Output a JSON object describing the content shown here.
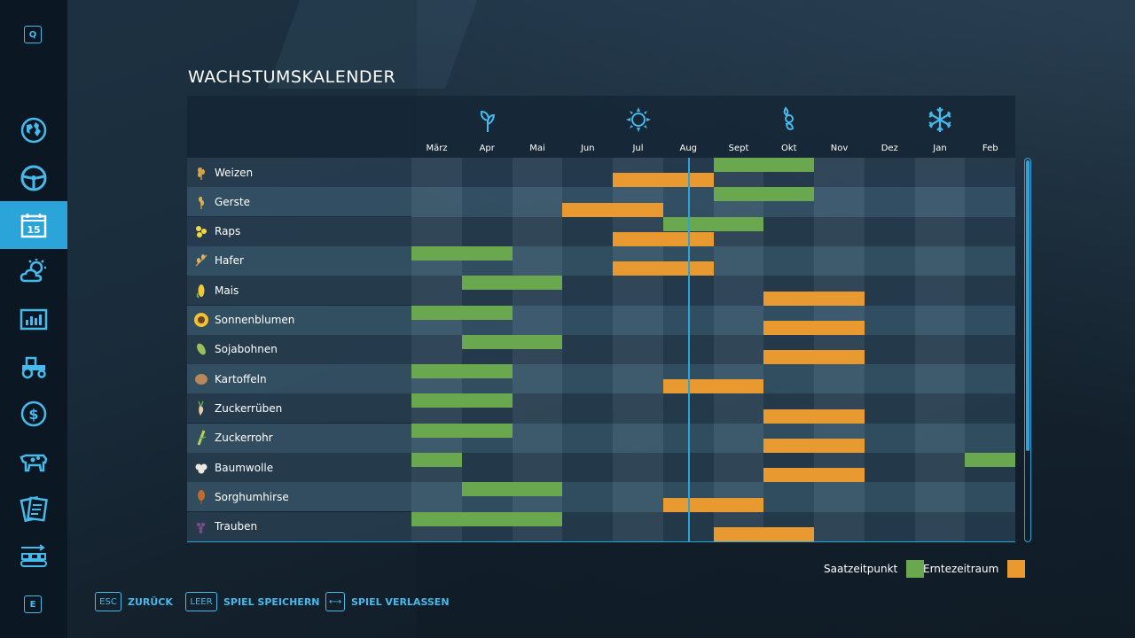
{
  "sidebar": {
    "top_key": "Q",
    "bottom_key": "E",
    "items": [
      {
        "icon": "globe-map-icon"
      },
      {
        "icon": "steering-wheel-icon"
      },
      {
        "icon": "calendar-icon",
        "day": "15",
        "active": true
      },
      {
        "icon": "weather-icon"
      },
      {
        "icon": "statistics-icon"
      },
      {
        "icon": "tractor-icon"
      },
      {
        "icon": "finances-icon"
      },
      {
        "icon": "animals-icon"
      },
      {
        "icon": "contracts-icon"
      },
      {
        "icon": "production-icon"
      }
    ]
  },
  "title": "WACHSTUMSKALENDER",
  "calendar": {
    "seasons": [
      "spring-icon",
      "summer-icon",
      "autumn-icon",
      "winter-icon"
    ],
    "months": [
      "März",
      "Apr",
      "Mai",
      "Jun",
      "Jul",
      "Aug",
      "Sept",
      "Okt",
      "Nov",
      "Dez",
      "Jan",
      "Feb"
    ],
    "current_month_position": 5.5,
    "crops": [
      {
        "name": "Weizen",
        "icon": "wheat-icon",
        "sow": [
          [
            6,
            8
          ]
        ],
        "harvest": [
          [
            4,
            6
          ]
        ]
      },
      {
        "name": "Gerste",
        "icon": "barley-icon",
        "sow": [
          [
            6,
            8
          ]
        ],
        "harvest": [
          [
            3,
            5
          ]
        ]
      },
      {
        "name": "Raps",
        "icon": "canola-icon",
        "sow": [
          [
            5,
            7
          ]
        ],
        "harvest": [
          [
            4,
            6
          ]
        ]
      },
      {
        "name": "Hafer",
        "icon": "oat-icon",
        "sow": [
          [
            0,
            2
          ]
        ],
        "harvest": [
          [
            4,
            6
          ]
        ]
      },
      {
        "name": "Mais",
        "icon": "maize-icon",
        "sow": [
          [
            1,
            3
          ]
        ],
        "harvest": [
          [
            7,
            9
          ]
        ]
      },
      {
        "name": "Sonnenblumen",
        "icon": "sunflower-icon",
        "sow": [
          [
            0,
            2
          ]
        ],
        "harvest": [
          [
            7,
            9
          ]
        ]
      },
      {
        "name": "Sojabohnen",
        "icon": "soybean-icon",
        "sow": [
          [
            1,
            3
          ]
        ],
        "harvest": [
          [
            7,
            9
          ]
        ]
      },
      {
        "name": "Kartoffeln",
        "icon": "potato-icon",
        "sow": [
          [
            0,
            2
          ]
        ],
        "harvest": [
          [
            5,
            7
          ]
        ]
      },
      {
        "name": "Zuckerrüben",
        "icon": "sugarbeet-icon",
        "sow": [
          [
            0,
            2
          ]
        ],
        "harvest": [
          [
            7,
            9
          ]
        ]
      },
      {
        "name": "Zuckerrohr",
        "icon": "sugarcane-icon",
        "sow": [
          [
            0,
            2
          ]
        ],
        "harvest": [
          [
            7,
            9
          ]
        ]
      },
      {
        "name": "Baumwolle",
        "icon": "cotton-icon",
        "sow": [
          [
            0,
            1
          ],
          [
            11,
            12
          ]
        ],
        "harvest": [
          [
            7,
            9
          ]
        ]
      },
      {
        "name": "Sorghumhirse",
        "icon": "sorghum-icon",
        "sow": [
          [
            1,
            3
          ]
        ],
        "harvest": [
          [
            5,
            7
          ]
        ]
      },
      {
        "name": "Trauben",
        "icon": "grapes-icon",
        "sow": [
          [
            0,
            3
          ]
        ],
        "harvest": [
          [
            6,
            8
          ]
        ]
      }
    ]
  },
  "legend": {
    "sow_label": "Saatzeitpunkt",
    "harvest_label": "Erntezeitraum",
    "sow_color": "#6aa84f",
    "harvest_color": "#e89a31"
  },
  "footer": [
    {
      "key": "ESC",
      "label": "ZURÜCK"
    },
    {
      "key": "LEER",
      "label": "SPIEL SPEICHERN"
    },
    {
      "key": "⟷",
      "label": "SPIEL VERLASSEN"
    }
  ]
}
